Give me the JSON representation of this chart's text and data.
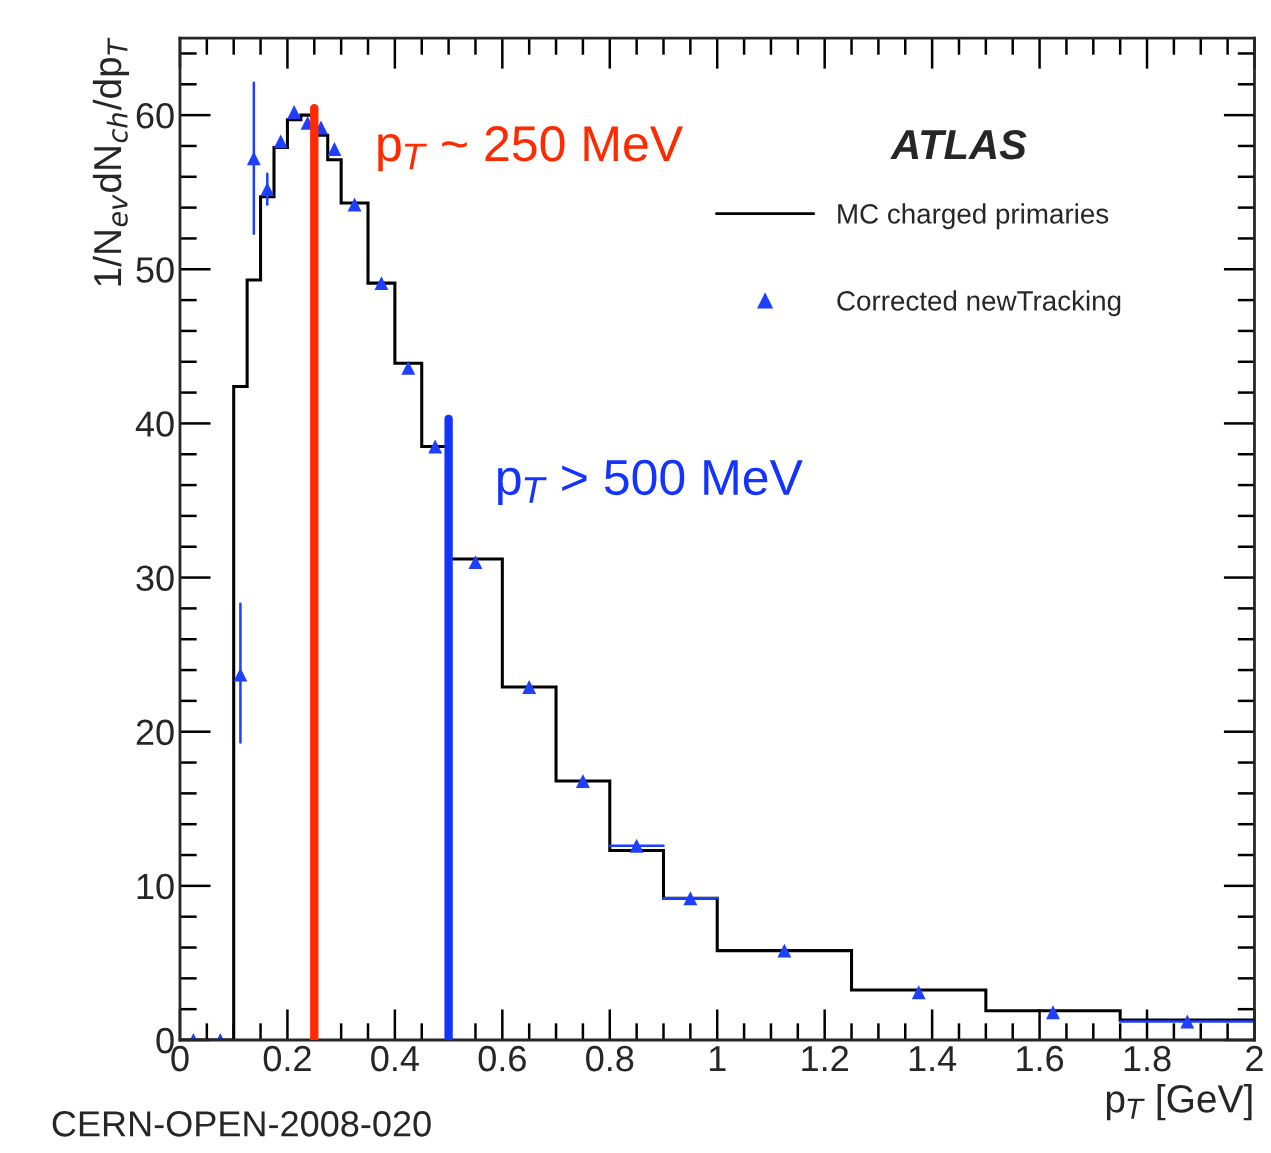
{
  "chart_data": {
    "type": "histogram",
    "xlabel": "p$_{T}$ [GeV]",
    "ylabel": "1/N$_{ev}$dN$_{ch}$/dp$_{T}$",
    "series": [
      {
        "name": "MC charged primaries",
        "color": "#000000",
        "bins": [
          0,
          0.05,
          0.1,
          0.125,
          0.15,
          0.175,
          0.2,
          0.225,
          0.25,
          0.275,
          0.3,
          0.35,
          0.4,
          0.45,
          0.5,
          0.6,
          0.7,
          0.8,
          0.9,
          1.0,
          1.25,
          1.5,
          1.75,
          2.0
        ],
        "values": [
          0,
          0,
          42.4,
          49.3,
          54.7,
          57.9,
          59.7,
          60.0,
          58.7,
          57.1,
          54.3,
          49.1,
          43.9,
          38.5,
          31.2,
          22.9,
          16.8,
          12.3,
          9.2,
          5.8,
          3.25,
          1.9,
          1.3
        ]
      },
      {
        "name": "Corrected newTracking",
        "type": "scatter",
        "marker": "triangle",
        "color": "#1f3fff",
        "x": [
          0.025,
          0.075,
          0.1125,
          0.1375,
          0.1625,
          0.1875,
          0.2125,
          0.2375,
          0.2625,
          0.2875,
          0.325,
          0.375,
          0.425,
          0.475,
          0.55,
          0.65,
          0.75,
          0.85,
          0.95,
          1.125,
          1.375,
          1.625,
          1.875
        ],
        "values": [
          0,
          0,
          23.7,
          57.2,
          55.2,
          58.3,
          60.2,
          59.5,
          59.2,
          57.8,
          54.2,
          49.1,
          43.6,
          38.5,
          31.0,
          22.9,
          16.8,
          12.6,
          9.2,
          5.8,
          3.1,
          1.8,
          1.2
        ],
        "errors": [
          null,
          null,
          [
            19.3,
            28.3
          ],
          [
            52.3,
            62.1
          ],
          [
            54.2,
            56.2
          ],
          null,
          null,
          null,
          null,
          null,
          null,
          null,
          null,
          null,
          null,
          null,
          null,
          null,
          null,
          null,
          null,
          null,
          null
        ],
        "xerrors": [
          null,
          null,
          null,
          null,
          null,
          null,
          null,
          null,
          null,
          null,
          null,
          null,
          null,
          null,
          null,
          null,
          null,
          [
            0.8,
            0.9
          ],
          [
            0.9,
            1.0
          ],
          null,
          null,
          null,
          [
            1.75,
            2.0
          ]
        ]
      }
    ],
    "xlim": [
      0,
      2
    ],
    "xticks": [
      0,
      0.2,
      0.4,
      0.6,
      0.8,
      1,
      1.2,
      1.4,
      1.6,
      1.8,
      2
    ],
    "ylim": [
      0,
      65
    ],
    "yticks": [
      0,
      10,
      20,
      30,
      40,
      50,
      60
    ],
    "ref_lines": [
      {
        "axis": "x",
        "value": 0.25,
        "label": "p$_{T}$ ~ 250 MeV",
        "color": "#ff2a00"
      },
      {
        "axis": "x",
        "value": 0.5,
        "label": "p$_{T}$ > 500 MeV",
        "color": "#1433ff"
      }
    ],
    "annotations": [
      "ATLAS",
      "CERN-OPEN-2008-020"
    ],
    "legend": "top right",
    "grid": false
  }
}
